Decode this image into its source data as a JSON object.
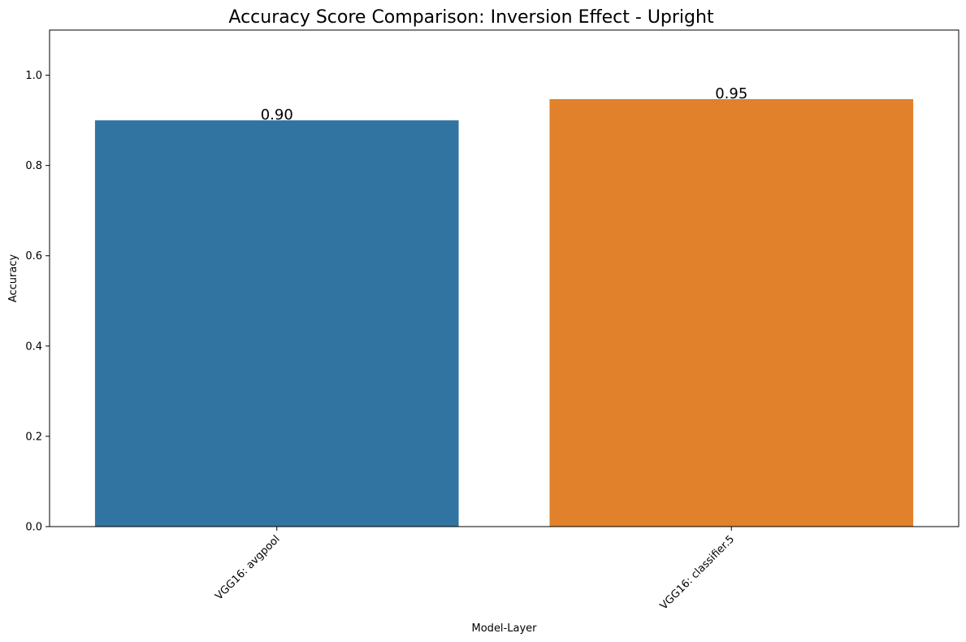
{
  "chart_data": {
    "type": "bar",
    "title": "Accuracy Score Comparison: Inversion Effect - Upright",
    "xlabel": "Model-Layer",
    "ylabel": "Accuracy",
    "categories": [
      "VGG16: avgpool",
      "VGG16: classifier.5"
    ],
    "values": [
      0.9,
      0.947
    ],
    "value_labels": [
      "0.90",
      "0.95"
    ],
    "colors": [
      "#3274a1",
      "#e1812c"
    ],
    "ylim": [
      0,
      1.1
    ],
    "yticks": [
      0.0,
      0.2,
      0.4,
      0.6,
      0.8,
      1.0
    ],
    "ytick_labels": [
      "0.0",
      "0.2",
      "0.4",
      "0.6",
      "0.8",
      "1.0"
    ],
    "grid": false,
    "legend": "none"
  }
}
